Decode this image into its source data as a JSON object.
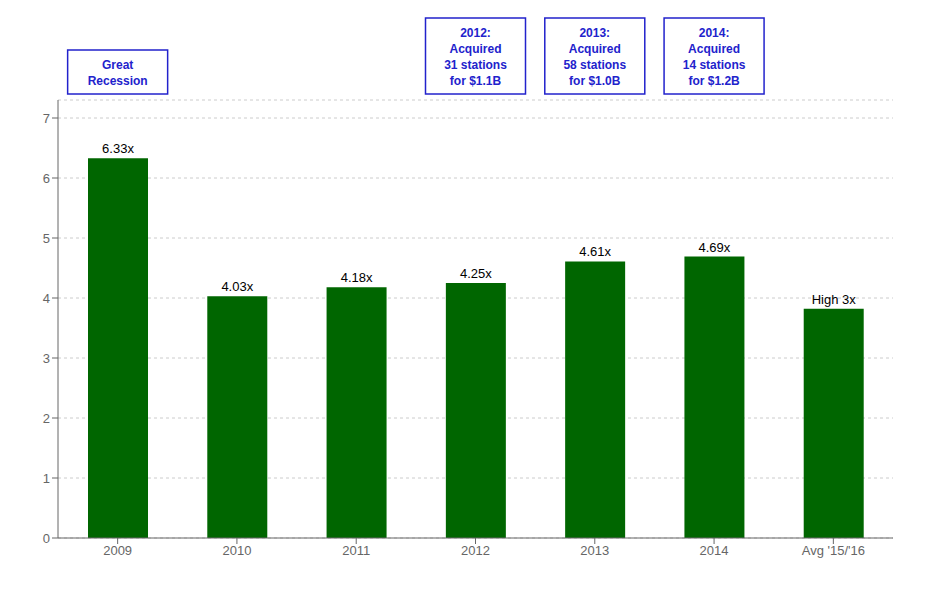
{
  "chart_data": {
    "type": "bar",
    "categories": [
      "2009",
      "2010",
      "2011",
      "2012",
      "2013",
      "2014",
      "Avg '15/'16"
    ],
    "values": [
      6.33,
      4.03,
      4.18,
      4.25,
      4.61,
      4.69,
      3.82
    ],
    "value_labels": [
      "6.33x",
      "4.03x",
      "4.18x",
      "4.25x",
      "4.61x",
      "4.69x",
      "High 3x"
    ],
    "data_labels": true,
    "color": "#006600",
    "ylim": [
      0,
      7.3
    ],
    "yticks": [
      0,
      1,
      2,
      3,
      4,
      5,
      6,
      7
    ],
    "grid": true,
    "annotations": [
      {
        "text": "Great\nRecession",
        "category": "2009",
        "color": "#2222cc"
      },
      {
        "text": "2012:\nAcquired\n31 stations\nfor $1.1B",
        "category": "2012",
        "color": "#2222cc"
      },
      {
        "text": "2013:\nAcquired\n58 stations\nfor $1.0B",
        "category": "2013",
        "color": "#2222cc"
      },
      {
        "text": "2014:\nAcquired\n14 stations\nfor $1.2B",
        "category": "2014",
        "color": "#2222cc"
      }
    ]
  }
}
